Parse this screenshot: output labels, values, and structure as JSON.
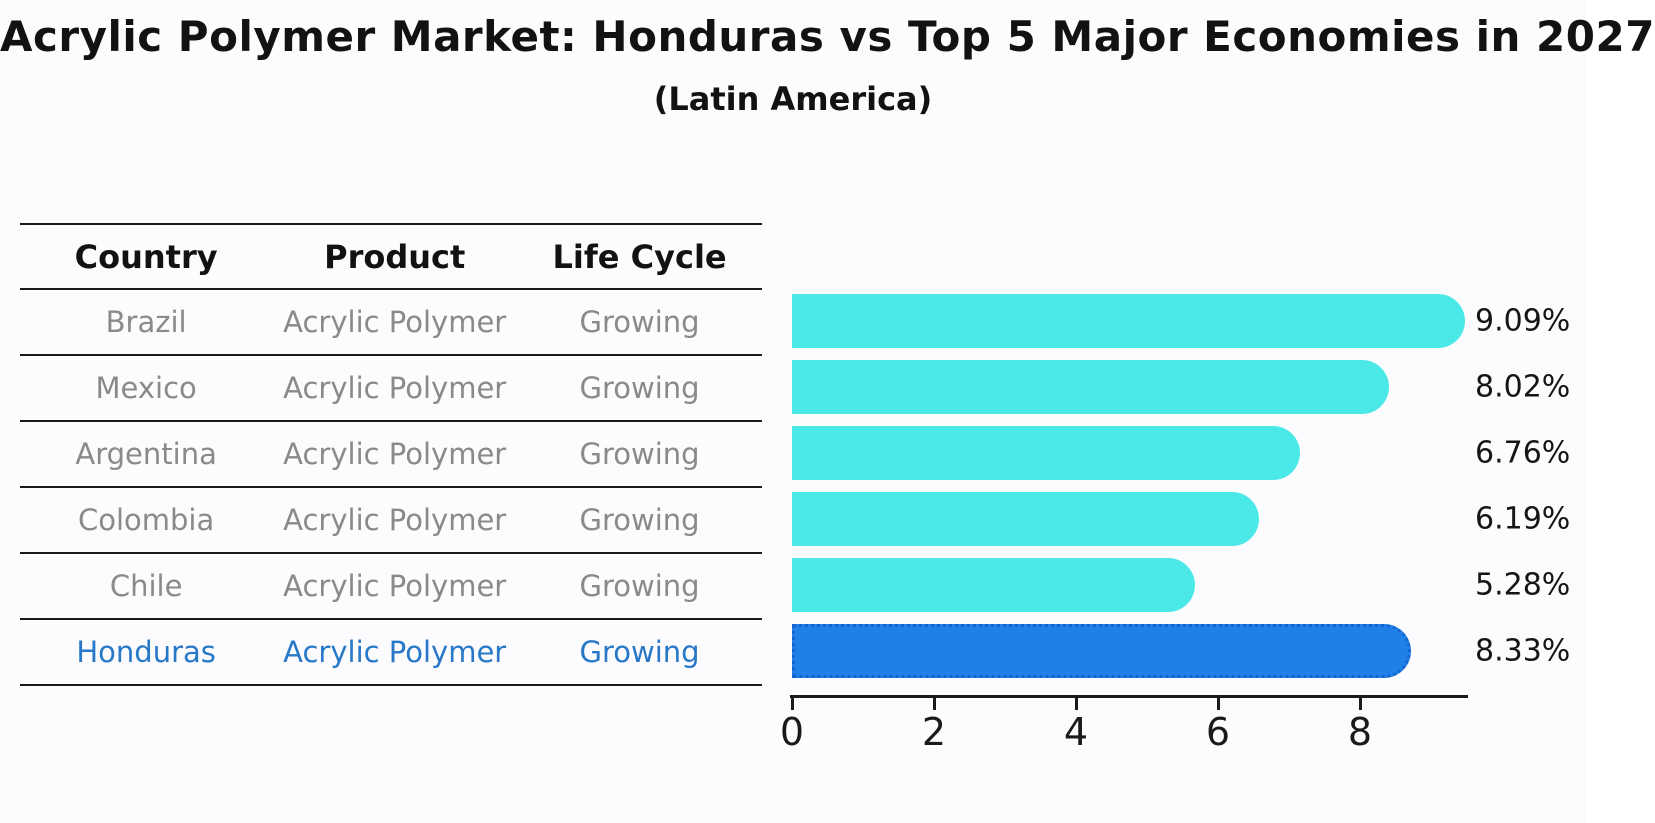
{
  "title": "Acrylic Polymer Market: Honduras vs Top 5 Major Economies in 2027",
  "subtitle": "(Latin America)",
  "table": {
    "headers": [
      "Country",
      "Product",
      "Life Cycle"
    ],
    "rows": [
      {
        "country": "Brazil",
        "product": "Acrylic Polymer",
        "life_cycle": "Growing",
        "highlight": false
      },
      {
        "country": "Mexico",
        "product": "Acrylic Polymer",
        "life_cycle": "Growing",
        "highlight": false
      },
      {
        "country": "Argentina",
        "product": "Acrylic Polymer",
        "life_cycle": "Growing",
        "highlight": false
      },
      {
        "country": "Colombia",
        "product": "Acrylic Polymer",
        "life_cycle": "Growing",
        "highlight": false
      },
      {
        "country": "Chile",
        "product": "Acrylic Polymer",
        "life_cycle": "Growing",
        "highlight": false
      },
      {
        "country": "Honduras",
        "product": "Acrylic Polymer",
        "life_cycle": "Growing",
        "highlight": true
      }
    ]
  },
  "chart_data": {
    "type": "bar",
    "orientation": "horizontal",
    "categories": [
      "Brazil",
      "Mexico",
      "Argentina",
      "Colombia",
      "Chile",
      "Honduras"
    ],
    "values": [
      9.09,
      8.02,
      6.76,
      6.19,
      5.28,
      8.33
    ],
    "labels": [
      "9.09%",
      "8.02%",
      "6.76%",
      "6.19%",
      "5.28%",
      "8.33%"
    ],
    "x_ticks": [
      0,
      2,
      4,
      6,
      8
    ],
    "xlim": [
      0,
      9.5
    ],
    "grid": false,
    "legend": "none",
    "highlight_index": 5,
    "bar_color": "#4BE8E8",
    "highlight_bar_color": "#1E80E8",
    "highlight_border_color": "#1565CC",
    "highlight_text_color": "#2878C8"
  }
}
